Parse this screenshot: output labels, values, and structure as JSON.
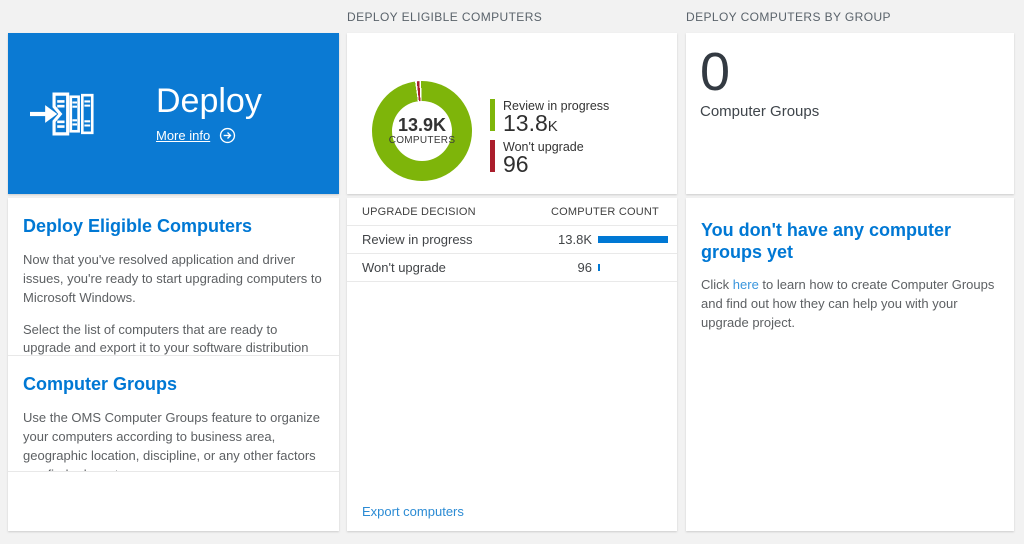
{
  "colors": {
    "tile_blue": "#0b7ad3",
    "heading_blue": "#0078d4",
    "link_blue": "#3a96dd",
    "export_link_blue": "#2b8bd4",
    "bar_blue": "#0078d4",
    "green": "#7eb50a",
    "red": "#aa1e2c",
    "page_background": "#f2f2f2"
  },
  "left": {
    "tile": {
      "title": "Deploy",
      "more_info": "More info"
    },
    "sections": [
      {
        "heading": "Deploy Eligible Computers",
        "para1": "Now that you've resolved application and driver issues, you're ready to start upgrading computers to Microsoft Windows.",
        "para2": "Select the list of computers that are ready to upgrade and export it to your software distribution solution."
      },
      {
        "heading": "Computer Groups",
        "para1": "Use the OMS Computer Groups feature to organize your computers according to business area, geographic location, discipline, or any other factors you find relevant."
      }
    ]
  },
  "middle": {
    "header": "DEPLOY ELIGIBLE COMPUTERS",
    "donut": {
      "value": "13.9K",
      "label": "COMPUTERS"
    },
    "legend": [
      {
        "label": "Review in progress",
        "value": "13.8",
        "suffix": "K"
      },
      {
        "label": "Won't upgrade",
        "value": "96",
        "suffix": ""
      }
    ],
    "table": {
      "col1": "UPGRADE DECISION",
      "col2": "COMPUTER COUNT",
      "rows": [
        {
          "label": "Review in progress",
          "count": "13.8K",
          "bar_pct": 100
        },
        {
          "label": "Won't upgrade",
          "count": "96",
          "bar_pct": 3
        }
      ]
    },
    "export_label": "Export computers"
  },
  "right": {
    "header": "DEPLOY COMPUTERS BY GROUP",
    "count": "0",
    "count_label": "Computer Groups",
    "empty": {
      "heading": "You don't have any computer groups yet",
      "before": "Click ",
      "link": "here",
      "after": " to learn how to create Computer Groups and find out how they can help you with your upgrade project."
    }
  },
  "chart_data": [
    {
      "type": "pie",
      "title": "DEPLOY ELIGIBLE COMPUTERS",
      "labels": [
        "Review in progress",
        "Won't upgrade"
      ],
      "values": [
        13800,
        96
      ],
      "colors": [
        "#7eb50a",
        "#aa1e2c"
      ],
      "center_value": "13.9K",
      "center_label": "COMPUTERS",
      "legend_position": "right",
      "donut": true
    },
    {
      "type": "table",
      "columns": [
        "UPGRADE DECISION",
        "COMPUTER COUNT"
      ],
      "rows": [
        [
          "Review in progress",
          "13.8K"
        ],
        [
          "Won't upgrade",
          "96"
        ]
      ],
      "bar_values": [
        13800,
        96
      ],
      "bar_color": "#0078d4"
    }
  ]
}
